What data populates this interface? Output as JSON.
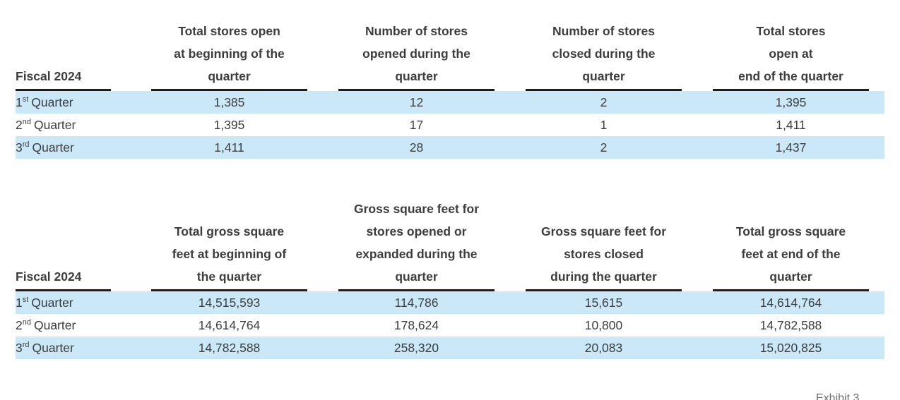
{
  "colors": {
    "background": "#ffffff",
    "text": "#3d3d3d",
    "highlight": "#cbe8f9",
    "rule": "#1d1d1d",
    "footer": "#6e6e6e"
  },
  "footer": {
    "label": "Exhibit 3"
  },
  "tables": [
    {
      "row_header_title": "Fiscal 2024",
      "columns": [
        {
          "lines": [
            "Total stores open",
            "at beginning of the",
            "quarter"
          ]
        },
        {
          "lines": [
            "Number of stores",
            "opened during the",
            "quarter"
          ]
        },
        {
          "lines": [
            "Number of stores",
            "closed during the",
            "quarter"
          ]
        },
        {
          "lines": [
            "Total stores",
            "open at",
            "end of the quarter"
          ]
        }
      ],
      "rows": [
        {
          "quarter": {
            "num": "1",
            "ord": "st",
            "word": "Quarter"
          },
          "values": [
            "1,385",
            "12",
            "2",
            "1,395"
          ]
        },
        {
          "quarter": {
            "num": "2",
            "ord": "nd",
            "word": "Quarter"
          },
          "values": [
            "1,395",
            "17",
            "1",
            "1,411"
          ]
        },
        {
          "quarter": {
            "num": "3",
            "ord": "rd",
            "word": "Quarter"
          },
          "values": [
            "1,411",
            "28",
            "2",
            "1,437"
          ]
        }
      ]
    },
    {
      "row_header_title": "Fiscal 2024",
      "columns": [
        {
          "lines": [
            "Total gross square",
            "feet at beginning of",
            "the quarter"
          ]
        },
        {
          "lines": [
            "Gross square feet for",
            "stores opened or",
            "expanded during the",
            "quarter"
          ]
        },
        {
          "lines": [
            "Gross square feet for",
            "stores closed",
            "during the quarter"
          ]
        },
        {
          "lines": [
            "Total gross square",
            "feet at end of the",
            "quarter"
          ]
        }
      ],
      "rows": [
        {
          "quarter": {
            "num": "1",
            "ord": "st",
            "word": "Quarter"
          },
          "values": [
            "14,515,593",
            "114,786",
            "15,615",
            "14,614,764"
          ]
        },
        {
          "quarter": {
            "num": "2",
            "ord": "nd",
            "word": "Quarter"
          },
          "values": [
            "14,614,764",
            "178,624",
            "10,800",
            "14,782,588"
          ]
        },
        {
          "quarter": {
            "num": "3",
            "ord": "rd",
            "word": "Quarter"
          },
          "values": [
            "14,782,588",
            "258,320",
            "20,083",
            "15,020,825"
          ]
        }
      ]
    }
  ]
}
